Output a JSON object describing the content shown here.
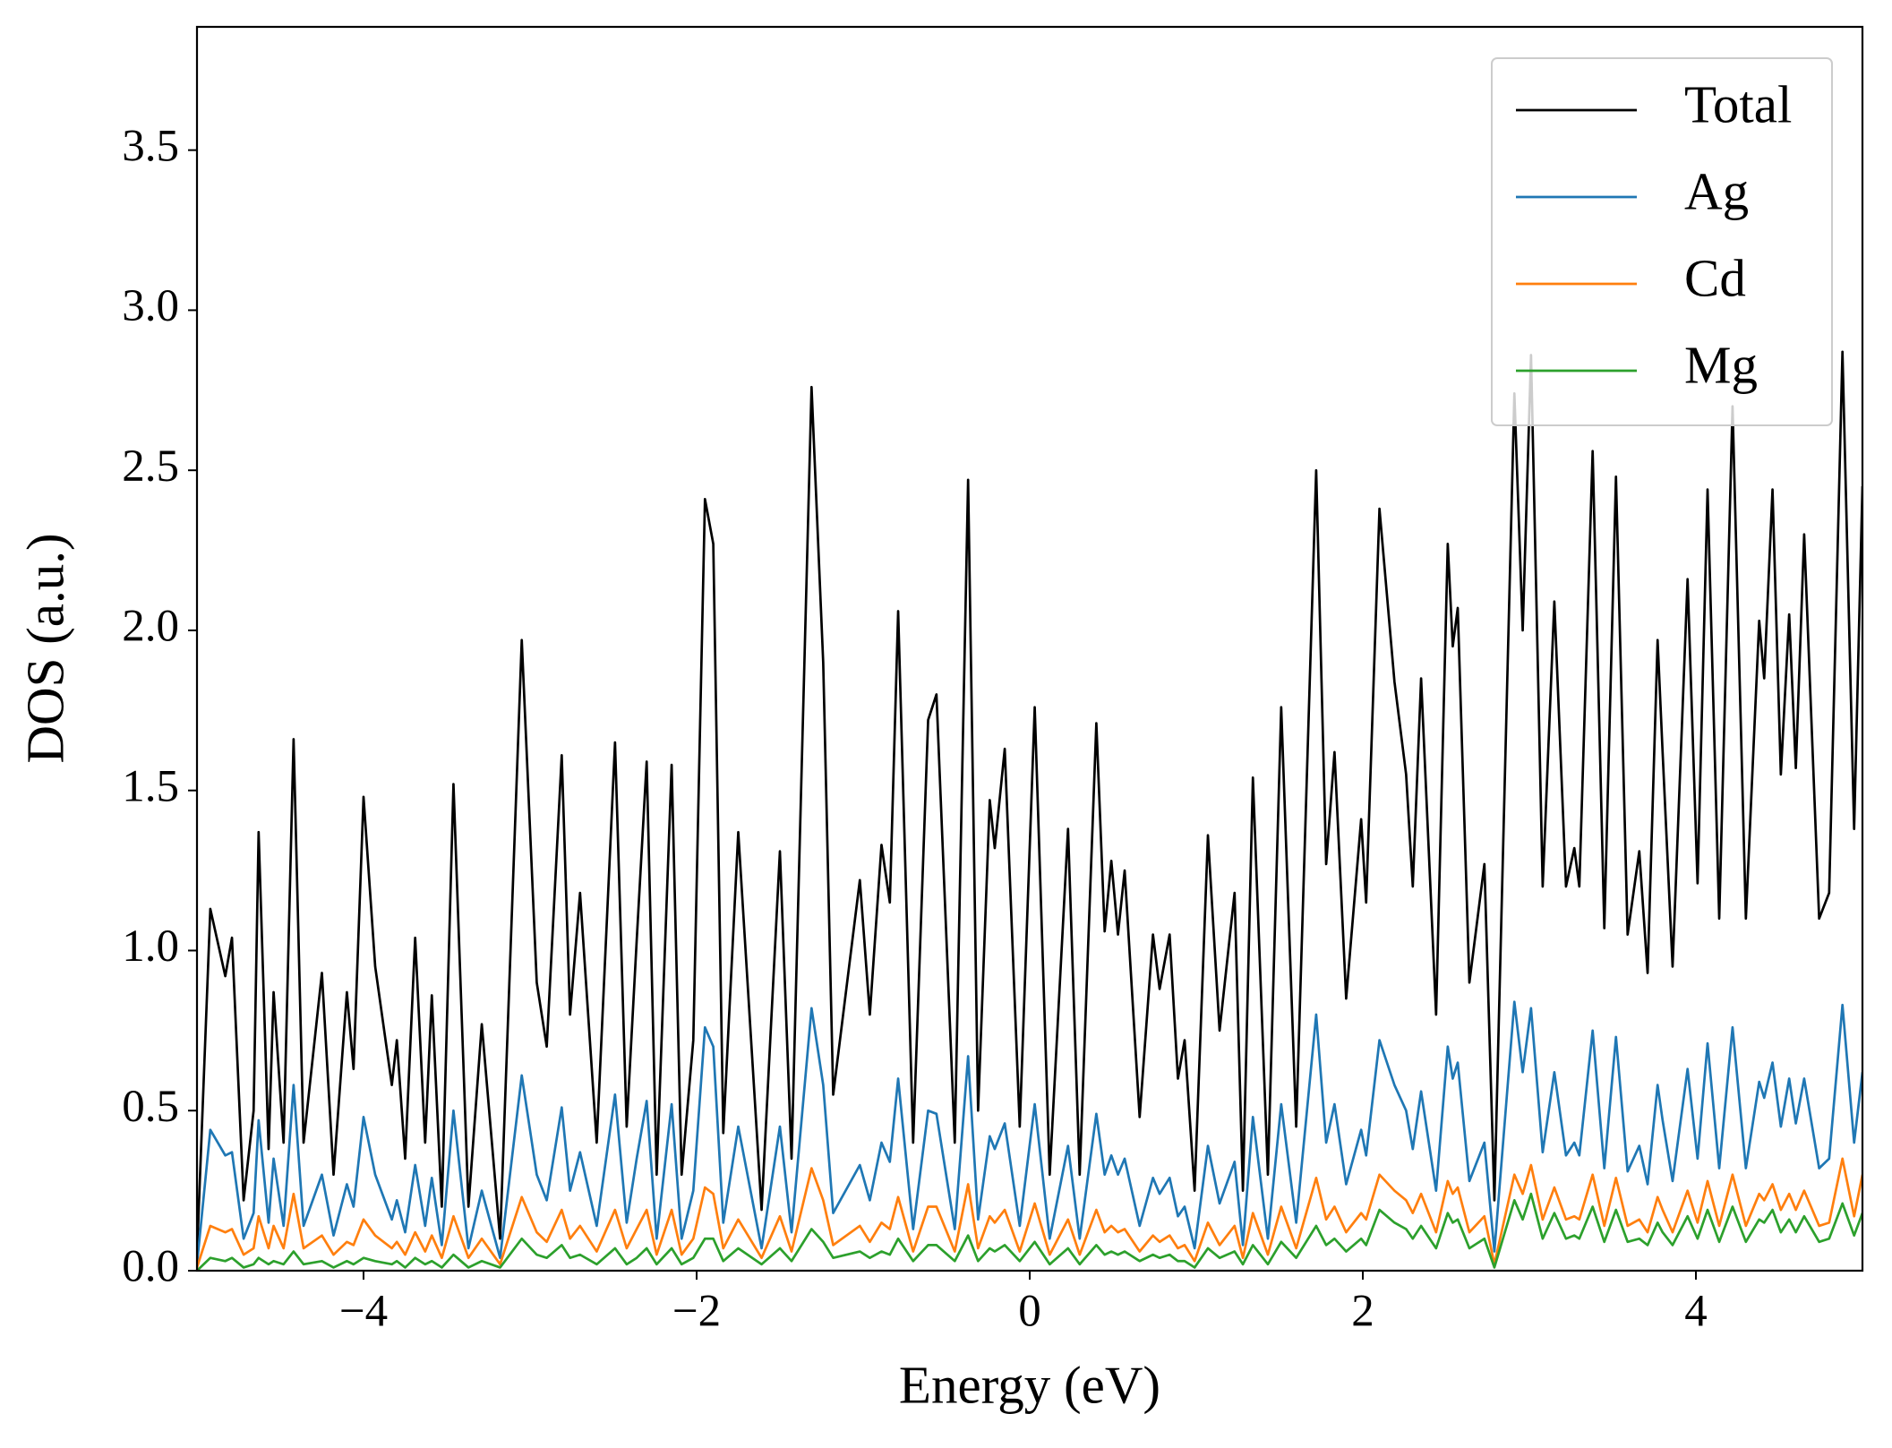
{
  "chart_data": {
    "type": "line",
    "xlabel": "Energy (eV)",
    "ylabel": "DOS (a.u.)",
    "xlim": [
      -5,
      5
    ],
    "ylim": [
      0,
      3.885
    ],
    "xticks": [
      {
        "value": -4,
        "label": "−4"
      },
      {
        "value": -2,
        "label": "−2"
      },
      0,
      2,
      4
    ],
    "yticks": [
      {
        "value": 0,
        "label": "0.0"
      },
      {
        "value": 0.5,
        "label": "0.5"
      },
      {
        "value": 1,
        "label": "1.0"
      },
      {
        "value": 1.5,
        "label": "1.5"
      },
      {
        "value": 2,
        "label": "2.0"
      },
      {
        "value": 2.5,
        "label": "2.5"
      },
      {
        "value": 3,
        "label": "3.0"
      },
      {
        "value": 3.5,
        "label": "3.5"
      }
    ],
    "legend": "upper right",
    "grid": false,
    "x": [
      -5.0,
      -4.92,
      -4.83,
      -4.79,
      -4.72,
      -4.66,
      -4.63,
      -4.57,
      -4.54,
      -4.48,
      -4.42,
      -4.36,
      -4.25,
      -4.18,
      -4.1,
      -4.06,
      -4.0,
      -3.93,
      -3.83,
      -3.8,
      -3.75,
      -3.69,
      -3.63,
      -3.59,
      -3.53,
      -3.46,
      -3.37,
      -3.29,
      -3.18,
      -3.05,
      -2.96,
      -2.9,
      -2.81,
      -2.76,
      -2.7,
      -2.6,
      -2.49,
      -2.42,
      -2.36,
      -2.3,
      -2.24,
      -2.15,
      -2.09,
      -2.02,
      -1.95,
      -1.9,
      -1.84,
      -1.75,
      -1.61,
      -1.5,
      -1.43,
      -1.31,
      -1.24,
      -1.18,
      -1.02,
      -0.96,
      -0.89,
      -0.84,
      -0.79,
      -0.7,
      -0.61,
      -0.56,
      -0.45,
      -0.37,
      -0.31,
      -0.24,
      -0.21,
      -0.15,
      -0.06,
      0.03,
      0.12,
      0.23,
      0.3,
      0.4,
      0.45,
      0.49,
      0.53,
      0.57,
      0.66,
      0.74,
      0.78,
      0.84,
      0.89,
      0.93,
      0.99,
      1.07,
      1.14,
      1.23,
      1.28,
      1.34,
      1.43,
      1.51,
      1.6,
      1.72,
      1.78,
      1.83,
      1.9,
      1.99,
      2.02,
      2.1,
      2.19,
      2.26,
      2.3,
      2.35,
      2.44,
      2.51,
      2.54,
      2.57,
      2.64,
      2.73,
      2.79,
      2.91,
      2.96,
      3.01,
      3.08,
      3.15,
      3.22,
      3.27,
      3.3,
      3.38,
      3.45,
      3.52,
      3.59,
      3.66,
      3.71,
      3.77,
      3.8,
      3.86,
      3.95,
      4.01,
      4.07,
      4.14,
      4.22,
      4.3,
      4.38,
      4.41,
      4.46,
      4.51,
      4.56,
      4.6,
      4.65,
      4.74,
      4.8,
      4.88,
      4.95,
      5.0
    ],
    "series": [
      {
        "name": "Total",
        "color": "#000000",
        "values": [
          0.05,
          1.13,
          0.92,
          1.04,
          0.22,
          0.5,
          1.37,
          0.38,
          0.87,
          0.4,
          1.66,
          0.4,
          0.93,
          0.3,
          0.87,
          0.63,
          1.48,
          0.95,
          0.58,
          0.72,
          0.35,
          1.04,
          0.4,
          0.86,
          0.2,
          1.52,
          0.2,
          0.77,
          0.1,
          1.97,
          0.9,
          0.7,
          1.61,
          0.8,
          1.18,
          0.4,
          1.65,
          0.45,
          1.03,
          1.59,
          0.3,
          1.58,
          0.3,
          0.72,
          2.41,
          2.27,
          0.43,
          1.37,
          0.19,
          1.31,
          0.35,
          2.76,
          1.9,
          0.55,
          1.22,
          0.8,
          1.33,
          1.15,
          2.06,
          0.4,
          1.72,
          1.8,
          0.4,
          2.47,
          0.5,
          1.47,
          1.32,
          1.63,
          0.45,
          1.76,
          0.3,
          1.38,
          0.3,
          1.71,
          1.06,
          1.28,
          1.05,
          1.25,
          0.48,
          1.05,
          0.88,
          1.05,
          0.6,
          0.72,
          0.25,
          1.36,
          0.75,
          1.18,
          0.25,
          1.54,
          0.3,
          1.76,
          0.45,
          2.5,
          1.27,
          1.62,
          0.85,
          1.41,
          1.15,
          2.38,
          1.84,
          1.55,
          1.2,
          1.85,
          0.8,
          2.27,
          1.95,
          2.07,
          0.9,
          1.27,
          0.22,
          2.74,
          2.0,
          2.86,
          1.2,
          2.09,
          1.2,
          1.32,
          1.2,
          2.56,
          1.07,
          2.48,
          1.05,
          1.31,
          0.93,
          1.97,
          1.62,
          0.95,
          2.16,
          1.21,
          2.44,
          1.1,
          2.7,
          1.1,
          2.03,
          1.85,
          2.44,
          1.55,
          2.05,
          1.57,
          2.3,
          1.1,
          1.18,
          2.87,
          1.38,
          2.45
        ]
      },
      {
        "name": "Ag",
        "color": "#1f77b4",
        "values": [
          0.02,
          0.44,
          0.36,
          0.37,
          0.1,
          0.18,
          0.47,
          0.15,
          0.35,
          0.14,
          0.58,
          0.14,
          0.3,
          0.11,
          0.27,
          0.2,
          0.48,
          0.3,
          0.16,
          0.22,
          0.12,
          0.33,
          0.14,
          0.29,
          0.08,
          0.5,
          0.07,
          0.25,
          0.04,
          0.61,
          0.3,
          0.22,
          0.51,
          0.25,
          0.37,
          0.14,
          0.55,
          0.15,
          0.35,
          0.53,
          0.1,
          0.52,
          0.1,
          0.25,
          0.76,
          0.7,
          0.15,
          0.45,
          0.07,
          0.45,
          0.12,
          0.82,
          0.58,
          0.18,
          0.33,
          0.22,
          0.4,
          0.34,
          0.6,
          0.13,
          0.5,
          0.49,
          0.13,
          0.67,
          0.16,
          0.42,
          0.38,
          0.46,
          0.14,
          0.52,
          0.1,
          0.39,
          0.1,
          0.49,
          0.3,
          0.36,
          0.3,
          0.35,
          0.14,
          0.29,
          0.24,
          0.29,
          0.17,
          0.2,
          0.07,
          0.39,
          0.21,
          0.34,
          0.08,
          0.48,
          0.1,
          0.52,
          0.15,
          0.8,
          0.4,
          0.52,
          0.27,
          0.44,
          0.36,
          0.72,
          0.58,
          0.5,
          0.38,
          0.56,
          0.25,
          0.7,
          0.6,
          0.65,
          0.28,
          0.4,
          0.06,
          0.84,
          0.62,
          0.82,
          0.37,
          0.62,
          0.36,
          0.4,
          0.36,
          0.75,
          0.32,
          0.73,
          0.31,
          0.39,
          0.27,
          0.58,
          0.47,
          0.28,
          0.63,
          0.35,
          0.71,
          0.32,
          0.76,
          0.32,
          0.59,
          0.54,
          0.65,
          0.45,
          0.6,
          0.46,
          0.6,
          0.32,
          0.35,
          0.83,
          0.4,
          0.62
        ]
      },
      {
        "name": "Cd",
        "color": "#ff7f0e",
        "values": [
          0.01,
          0.14,
          0.12,
          0.13,
          0.05,
          0.07,
          0.17,
          0.07,
          0.14,
          0.07,
          0.24,
          0.07,
          0.11,
          0.05,
          0.09,
          0.08,
          0.16,
          0.11,
          0.07,
          0.09,
          0.05,
          0.12,
          0.06,
          0.11,
          0.04,
          0.17,
          0.04,
          0.1,
          0.02,
          0.23,
          0.12,
          0.09,
          0.19,
          0.1,
          0.14,
          0.06,
          0.19,
          0.07,
          0.13,
          0.19,
          0.05,
          0.19,
          0.05,
          0.1,
          0.26,
          0.24,
          0.07,
          0.16,
          0.04,
          0.17,
          0.06,
          0.32,
          0.22,
          0.08,
          0.14,
          0.09,
          0.15,
          0.13,
          0.23,
          0.06,
          0.2,
          0.2,
          0.06,
          0.27,
          0.07,
          0.17,
          0.15,
          0.19,
          0.06,
          0.21,
          0.05,
          0.16,
          0.05,
          0.19,
          0.12,
          0.14,
          0.12,
          0.13,
          0.06,
          0.11,
          0.09,
          0.11,
          0.07,
          0.08,
          0.03,
          0.15,
          0.08,
          0.14,
          0.04,
          0.18,
          0.05,
          0.2,
          0.07,
          0.29,
          0.16,
          0.2,
          0.12,
          0.18,
          0.16,
          0.3,
          0.25,
          0.22,
          0.18,
          0.24,
          0.12,
          0.28,
          0.24,
          0.26,
          0.12,
          0.17,
          0.02,
          0.3,
          0.24,
          0.33,
          0.16,
          0.26,
          0.16,
          0.17,
          0.16,
          0.3,
          0.14,
          0.29,
          0.14,
          0.16,
          0.12,
          0.23,
          0.19,
          0.12,
          0.25,
          0.15,
          0.28,
          0.14,
          0.3,
          0.14,
          0.24,
          0.22,
          0.27,
          0.19,
          0.24,
          0.19,
          0.25,
          0.14,
          0.15,
          0.35,
          0.17,
          0.3
        ]
      },
      {
        "name": "Mg",
        "color": "#2ca02c",
        "values": [
          0.0,
          0.04,
          0.03,
          0.04,
          0.01,
          0.02,
          0.04,
          0.02,
          0.03,
          0.02,
          0.06,
          0.02,
          0.03,
          0.01,
          0.03,
          0.02,
          0.04,
          0.03,
          0.02,
          0.03,
          0.01,
          0.04,
          0.02,
          0.03,
          0.01,
          0.05,
          0.01,
          0.03,
          0.01,
          0.1,
          0.05,
          0.04,
          0.08,
          0.04,
          0.05,
          0.02,
          0.07,
          0.02,
          0.04,
          0.07,
          0.02,
          0.07,
          0.02,
          0.04,
          0.1,
          0.1,
          0.03,
          0.07,
          0.02,
          0.07,
          0.03,
          0.13,
          0.09,
          0.04,
          0.06,
          0.04,
          0.06,
          0.05,
          0.1,
          0.03,
          0.08,
          0.08,
          0.03,
          0.11,
          0.03,
          0.07,
          0.06,
          0.08,
          0.03,
          0.09,
          0.02,
          0.07,
          0.02,
          0.08,
          0.05,
          0.06,
          0.05,
          0.06,
          0.03,
          0.05,
          0.04,
          0.05,
          0.03,
          0.03,
          0.01,
          0.07,
          0.04,
          0.06,
          0.02,
          0.08,
          0.02,
          0.09,
          0.04,
          0.14,
          0.08,
          0.1,
          0.06,
          0.1,
          0.08,
          0.19,
          0.15,
          0.13,
          0.1,
          0.14,
          0.07,
          0.18,
          0.15,
          0.16,
          0.07,
          0.1,
          0.01,
          0.22,
          0.16,
          0.24,
          0.1,
          0.18,
          0.1,
          0.11,
          0.1,
          0.2,
          0.09,
          0.19,
          0.09,
          0.1,
          0.08,
          0.15,
          0.12,
          0.08,
          0.17,
          0.1,
          0.19,
          0.09,
          0.2,
          0.09,
          0.16,
          0.15,
          0.19,
          0.12,
          0.16,
          0.12,
          0.17,
          0.09,
          0.1,
          0.21,
          0.11,
          0.18
        ]
      }
    ]
  }
}
